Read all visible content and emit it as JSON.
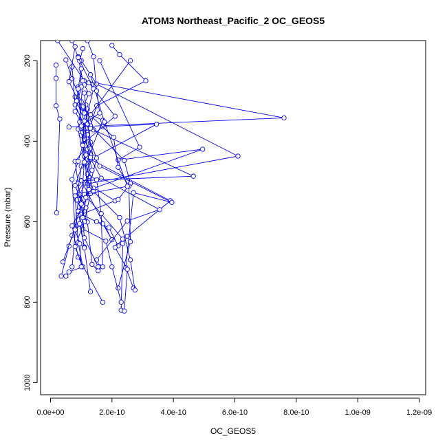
{
  "chart_data": {
    "type": "line",
    "title": "ATOM3 Northeast_Pacific_2 OC_GEOS5",
    "xlabel": "OC_GEOS5",
    "ylabel": "Pressure (mbar)",
    "xlim": [
      0,
      1.2e-09
    ],
    "ylim": [
      1030,
      150
    ],
    "y_reversed": true,
    "x_ticks": [
      0,
      2e-10,
      4e-10,
      6e-10,
      8e-10,
      1e-09,
      1.2e-09
    ],
    "x_tick_labels": [
      "0.0e+00",
      "2.0e-10",
      "4.0e-10",
      "6.0e-10",
      "8.0e-10",
      "1.0e-09",
      "1.2e-09"
    ],
    "y_ticks": [
      200,
      400,
      600,
      800,
      1000
    ],
    "y_tick_labels": [
      "200",
      "400",
      "600",
      "800",
      "1000"
    ],
    "grid": false,
    "legend": "none",
    "series_color": "#0000ff",
    "marker": "open-circle",
    "series": [
      {
        "x": [
          2.3e-11,
          1.1e-10,
          7.6e-10,
          6e-11
        ],
        "y": [
          150,
          250,
          342,
          365
        ]
      },
      {
        "x": [
          1.8e-11,
          1.8e-11,
          1.8e-11,
          3e-11,
          2e-11
        ],
        "y": [
          211,
          244,
          312,
          345,
          578
        ]
      },
      {
        "x": [
          1e-10,
          1.5e-10,
          6.1e-10,
          1.2e-10,
          2.1e-10,
          1e-10,
          1.9e-10,
          2.2e-10
        ],
        "y": [
          200,
          258,
          437,
          506,
          548,
          582,
          615,
          660
        ]
      },
      {
        "x": [
          1.6e-10,
          2.9e-10,
          2.2e-10,
          4.95e-10,
          1.4e-10,
          9e-11,
          7e-11
        ],
        "y": [
          200,
          415,
          447,
          420,
          517,
          545,
          712
        ]
      },
      {
        "x": [
          1.7e-10,
          3.45e-10,
          1.3e-10,
          3.9e-10,
          2.5e-10,
          2.35e-10,
          2.3e-10
        ],
        "y": [
          364,
          358,
          445,
          548,
          636,
          654,
          820
        ]
      },
      {
        "x": [
          1.15e-10,
          1.4e-10,
          4.65e-10,
          1e-10,
          2e-10,
          1.7e-10,
          1.5e-10
        ],
        "y": [
          310,
          372,
          487,
          498,
          645,
          605,
          600
        ]
      },
      {
        "x": [
          1e-10,
          1.6e-10,
          3.95e-10,
          2.7e-10,
          2.45e-10,
          2.7e-10
        ],
        "y": [
          385,
          462,
          552,
          528,
          714,
          765
        ]
      },
      {
        "x": [
          2e-10,
          2.25e-10,
          3.1e-10,
          1.5e-10,
          1.3e-10,
          2.4e-10,
          2.6e-10,
          2.2e-10
        ],
        "y": [
          162,
          185,
          250,
          312,
          362,
          448,
          505,
          545
        ]
      },
      {
        "x": [
          1.25e-10,
          2.1e-10,
          1.05e-10,
          1.65e-10,
          3.55e-10,
          2.5e-10,
          1.5e-10,
          1.6e-10
        ],
        "y": [
          255,
          338,
          407,
          492,
          570,
          598,
          695,
          712
        ]
      },
      {
        "x": [
          8e-11,
          1.05e-10,
          2.05e-10,
          2.2e-10,
          2.55e-10,
          2.6e-10,
          2.2e-10
        ],
        "y": [
          290,
          318,
          390,
          465,
          512,
          650,
          765
        ]
      },
      {
        "x": [
          5e-11,
          7e-11,
          1e-10,
          9e-11,
          1.3e-10,
          1.05e-10,
          1.8e-10,
          2e-10,
          2.3e-10
        ],
        "y": [
          198,
          245,
          302,
          370,
          530,
          618,
          648,
          712,
          800
        ]
      },
      {
        "x": [
          2.6e-10,
          1.3e-10,
          1.7e-10,
          1.15e-10,
          1.4e-10,
          2.25e-10,
          2.6e-10,
          2.75e-10
        ],
        "y": [
          200,
          334,
          348,
          455,
          525,
          590,
          695,
          770
        ]
      },
      {
        "x": [
          1.3e-10,
          1.75e-10,
          2.5e-10,
          1.1e-10,
          2.35e-10,
          2.1e-10,
          2.5e-10,
          2.4e-10
        ],
        "y": [
          235,
          352,
          512,
          532,
          643,
          664,
          718,
          822
        ]
      },
      {
        "x": [
          9e-11,
          1e-10,
          1.1e-10,
          1.25e-10,
          9.5e-11,
          1.15e-10,
          1.35e-10,
          1.55e-10
        ],
        "y": [
          265,
          368,
          438,
          488,
          532,
          565,
          706,
          722
        ]
      },
      {
        "x": [
          1.2e-10,
          1.3e-10,
          8e-11,
          9e-11,
          1e-10,
          9e-11,
          7e-11,
          6e-11,
          3.5e-11
        ],
        "y": [
          320,
          403,
          450,
          505,
          552,
          584,
          634,
          661,
          735
        ]
      },
      {
        "x": [
          1.1e-10,
          1.2e-10,
          1.3e-10,
          1.2e-10,
          1.5e-10,
          1.65e-10,
          1.7e-10
        ],
        "y": [
          280,
          357,
          418,
          482,
          496,
          580,
          712
        ]
      },
      {
        "x": [
          7e-11,
          8e-11,
          1.2e-10,
          1.4e-10,
          1e-10,
          8.5e-11,
          1.2e-10,
          8e-11,
          4e-11
        ],
        "y": [
          215,
          310,
          378,
          440,
          462,
          546,
          601,
          617,
          700
        ]
      },
      {
        "x": [
          1.1e-10,
          1.25e-10,
          1.05e-10,
          1.3e-10,
          1.1e-10,
          1.2e-10,
          9e-11,
          1.1e-10,
          1.3e-10
        ],
        "y": [
          260,
          282,
          315,
          368,
          395,
          540,
          574,
          663,
          774
        ]
      },
      {
        "x": [
          9e-11,
          1.05e-10,
          9.5e-11,
          1.15e-10,
          8e-11,
          1.05e-10,
          7e-11,
          9e-11,
          1.7e-10
        ],
        "y": [
          190,
          250,
          352,
          434,
          510,
          560,
          610,
          688,
          800
        ]
      },
      {
        "x": [
          1.05e-10,
          9.5e-11,
          1e-10,
          8e-11,
          1.2e-10,
          1.5e-10,
          1.25e-10,
          9.5e-11,
          1.1e-10
        ],
        "y": [
          170,
          201,
          265,
          326,
          384,
          442,
          520,
          605,
          665
        ]
      },
      {
        "x": [
          7e-11,
          9e-11,
          1.4e-10,
          1.05e-10,
          1.1e-10,
          1e-10,
          1.1e-10,
          8e-11,
          1.05e-10
        ],
        "y": [
          150,
          192,
          270,
          378,
          452,
          556,
          600,
          662,
          712
        ]
      },
      {
        "x": [
          8e-11,
          6e-11,
          1.1e-10,
          1.2e-10,
          1.35e-10,
          8e-11,
          9e-11,
          1.05e-10,
          6e-11,
          5e-11
        ],
        "y": [
          165,
          252,
          330,
          420,
          472,
          536,
          652,
          712,
          725,
          735
        ]
      },
      {
        "x": [
          1.2e-10,
          1.4e-10,
          1.5e-10,
          1.6e-10,
          1e-10,
          1.3e-10,
          1.15e-10,
          1.05e-10,
          1.1e-10,
          1.55e-10
        ],
        "y": [
          150,
          190,
          275,
          330,
          362,
          440,
          540,
          590,
          640,
          712
        ]
      },
      {
        "x": [
          1e-10,
          9e-11,
          8.5e-11,
          1.1e-10,
          1.05e-10,
          9e-11,
          7e-11,
          8e-11,
          9.5e-11,
          1e-10
        ],
        "y": [
          220,
          270,
          300,
          350,
          410,
          450,
          495,
          620,
          655,
          712
        ]
      }
    ]
  }
}
